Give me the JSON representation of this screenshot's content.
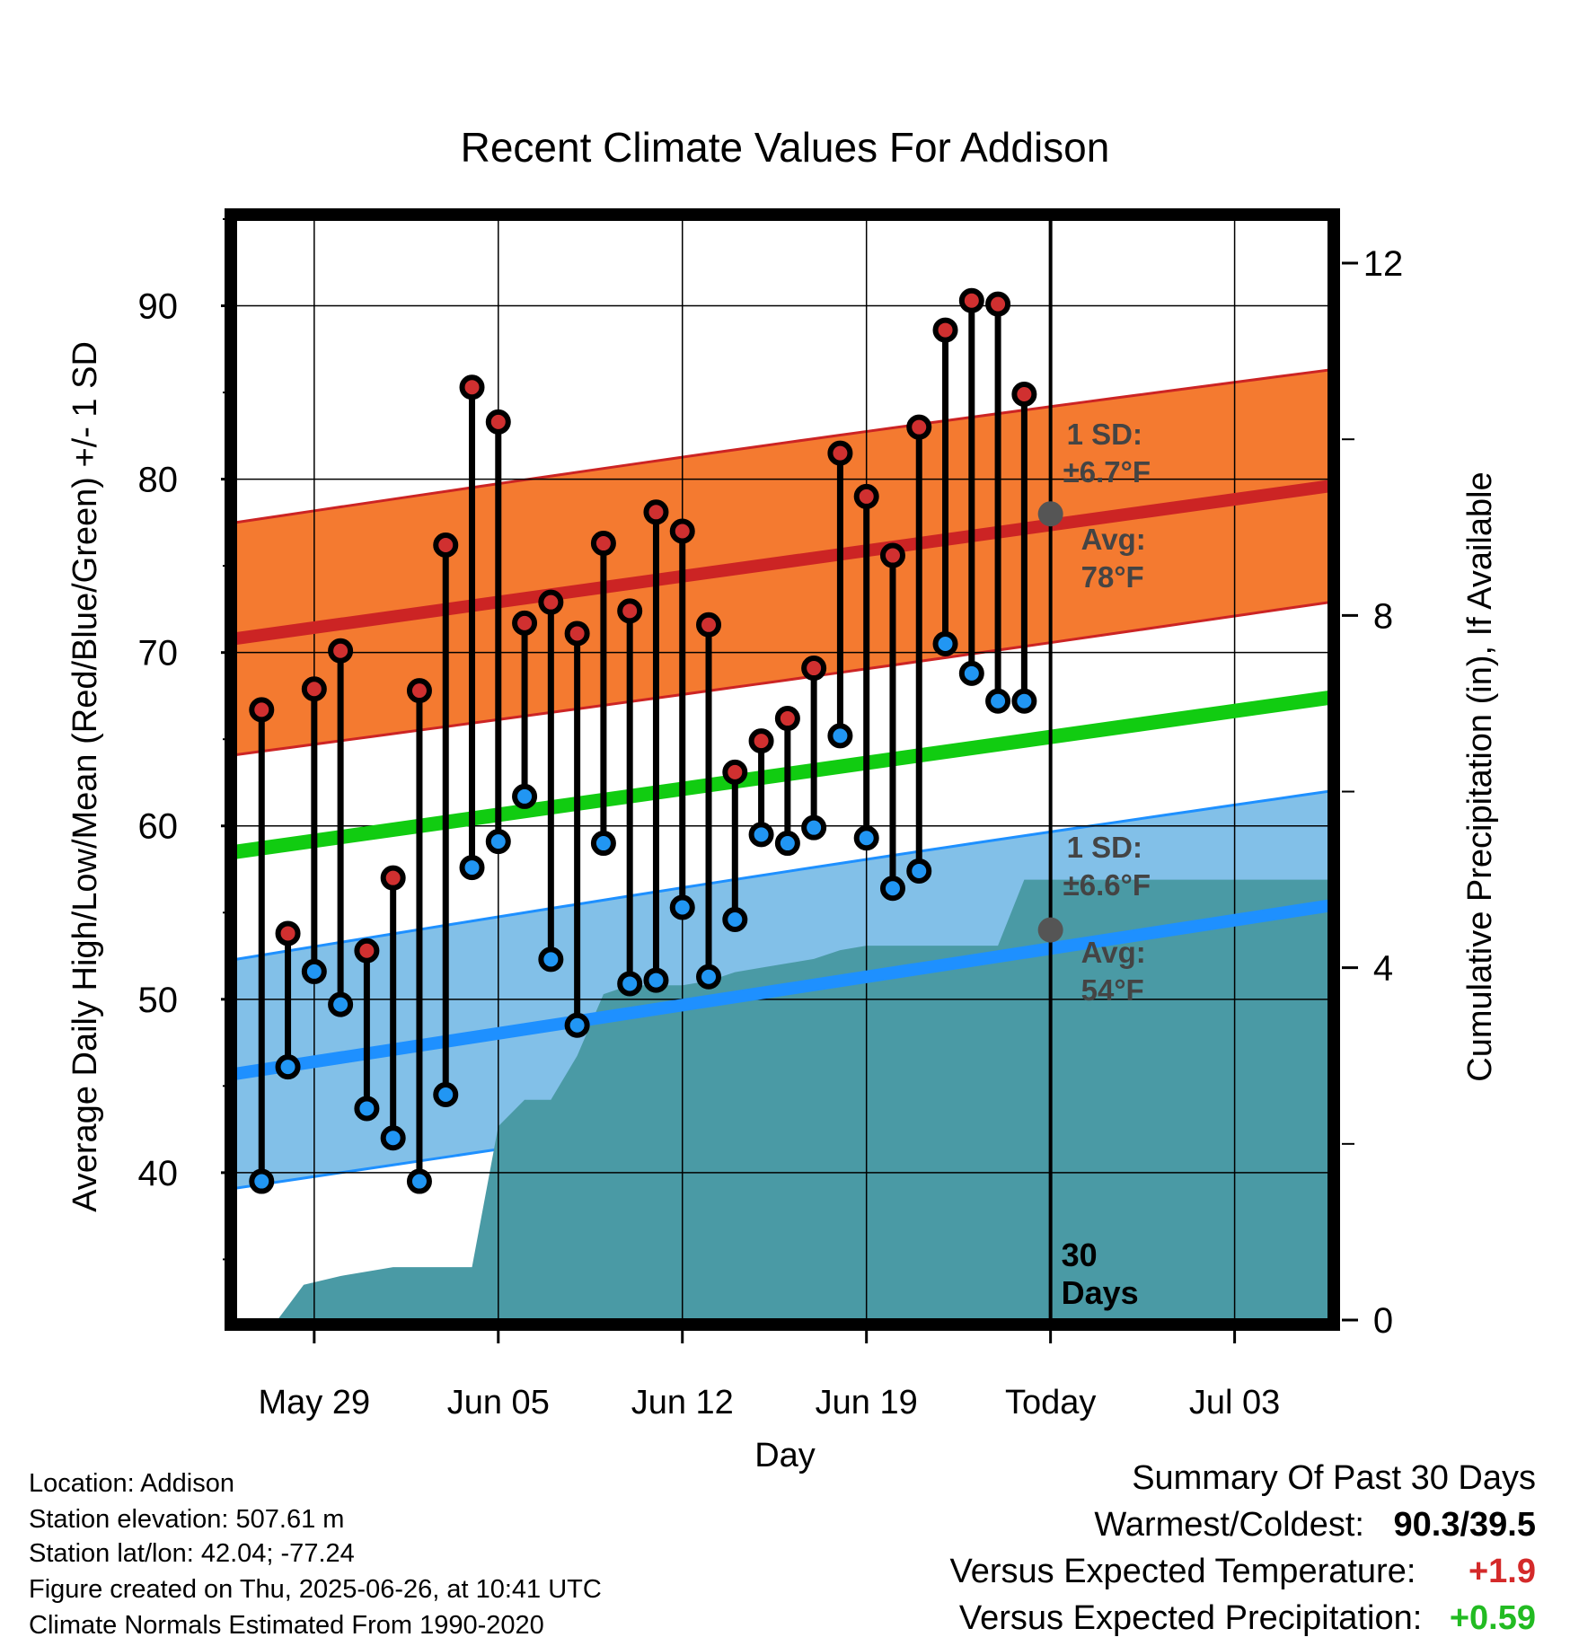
{
  "chart_data": {
    "type": "line",
    "title": "Recent Climate Values For Addison",
    "xlabel": "Day",
    "ylabel_left": "Average Daily High/Low/Mean (Red/Blue/Green) +/- 1 SD",
    "ylabel_right": "Cumulative Precipitation (in), If Available",
    "x_ticks": [
      {
        "day": 3,
        "label": "May 29"
      },
      {
        "day": 10,
        "label": "Jun 05"
      },
      {
        "day": 17,
        "label": "Jun 12"
      },
      {
        "day": 24,
        "label": "Jun 19"
      },
      {
        "day": 31,
        "label": "Today"
      },
      {
        "day": 38,
        "label": "Jul 03"
      }
    ],
    "xlim": [
      0,
      41.6
    ],
    "ylim_left": [
      31.5,
      95
    ],
    "ylim_right": [
      0,
      12.5
    ],
    "y_left_ticks": [
      40,
      50,
      60,
      70,
      80,
      90
    ],
    "y_right_ticks": [
      0,
      4,
      8,
      12
    ],
    "today_day": 31,
    "observed": {
      "days": [
        1,
        2,
        3,
        4,
        5,
        6,
        7,
        8,
        9,
        10,
        11,
        12,
        13,
        14,
        15,
        16,
        17,
        18,
        19,
        20,
        21,
        22,
        23,
        24,
        25,
        26,
        27,
        28,
        29,
        30
      ],
      "high": [
        66.7,
        53.8,
        67.9,
        70.1,
        52.8,
        57.0,
        67.8,
        76.2,
        85.3,
        83.3,
        71.7,
        72.9,
        71.1,
        76.3,
        72.4,
        78.1,
        77.0,
        71.6,
        63.1,
        64.9,
        66.2,
        69.1,
        81.5,
        79.0,
        75.6,
        83.0,
        88.6,
        90.3,
        90.1,
        84.9
      ],
      "low": [
        39.5,
        46.1,
        51.6,
        49.7,
        43.7,
        42.0,
        39.5,
        44.5,
        57.6,
        59.1,
        61.7,
        52.3,
        48.5,
        59.0,
        50.9,
        51.1,
        55.3,
        51.3,
        54.6,
        59.5,
        59.0,
        59.9,
        65.2,
        59.3,
        56.4,
        57.4,
        70.5,
        68.8,
        67.2,
        67.2
      ]
    },
    "normals": {
      "days": [
        0,
        41.6
      ],
      "high_mean": [
        70.8,
        79.6
      ],
      "high_sd": 6.7,
      "low_mean": [
        45.7,
        55.4
      ],
      "low_sd": 6.6,
      "mean": [
        58.5,
        67.4
      ]
    },
    "precip": {
      "days": [
        1,
        1.6,
        2.6,
        4,
        6,
        9,
        10,
        11,
        12,
        13,
        14,
        15,
        16,
        17,
        18,
        19,
        20,
        21,
        22,
        23,
        24,
        25,
        27,
        29,
        30,
        41.6
      ],
      "values": [
        0,
        0,
        0.4,
        0.5,
        0.6,
        0.6,
        2.2,
        2.5,
        2.5,
        3.0,
        3.7,
        3.8,
        3.8,
        3.8,
        3.85,
        3.95,
        4.0,
        4.05,
        4.1,
        4.2,
        4.25,
        4.25,
        4.25,
        4.25,
        5.0,
        5.0
      ]
    },
    "annotations": {
      "high_sd_label": "1 SD:",
      "high_sd_value": "±6.7°F",
      "high_avg_label": "Avg:",
      "high_avg_value": "78°F",
      "low_sd_label": "1 SD:",
      "low_sd_value": "±6.6°F",
      "low_avg_label": "Avg:",
      "low_avg_value": "54°F",
      "days_number": "30",
      "days_word": "Days",
      "high_avg_point": 78.0,
      "low_avg_point": 54.0
    },
    "colors": {
      "high_band": "#f47a30",
      "high_line": "#cc2424",
      "low_band": "#82c0e8",
      "low_line": "#1e90ff",
      "mean_line": "#11cc11",
      "precip": "#4a9aa5",
      "high_dot": "#d03030",
      "low_dot": "#2196f3"
    }
  },
  "info": {
    "location": "Location: Addison",
    "elevation": "Station elevation: 507.61 m",
    "latlon": "Station lat/lon: 42.04; -77.24",
    "created": "Figure created on Thu, 2025-06-26, at 10:41 UTC",
    "normals": "Climate Normals Estimated From 1990-2020"
  },
  "summary": {
    "title": "Summary Of Past 30 Days",
    "warmest_label": "Warmest/Coldest:",
    "warmest_value": "90.3/39.5",
    "temp_label": "Versus Expected Temperature:",
    "temp_value": "+1.9",
    "temp_color": "#d42a2a",
    "precip_label": "Versus Expected Precipitation:",
    "precip_value": "+0.59",
    "precip_color": "#22bb22"
  }
}
